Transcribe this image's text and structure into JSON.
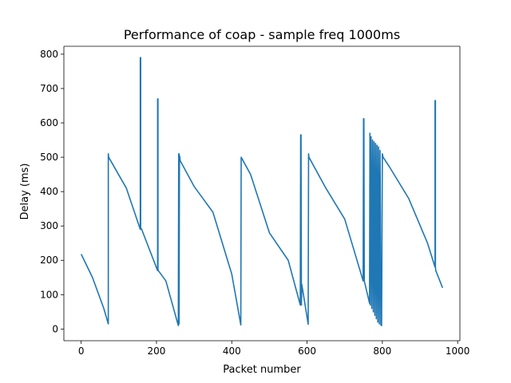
{
  "chart_data": {
    "type": "line",
    "title": "Performance of coap - sample freq 1000ms",
    "xlabel": "Packet number",
    "ylabel": "Delay (ms)",
    "xlim": [
      -46,
      1006
    ],
    "ylim": [
      -34,
      823
    ],
    "xticks": [
      0,
      200,
      400,
      600,
      800,
      1000
    ],
    "yticks": [
      0,
      100,
      200,
      300,
      400,
      500,
      600,
      700,
      800
    ],
    "grid": false,
    "legend": "none",
    "series_color": "#1f77b4",
    "series": [
      {
        "x": [
          0,
          30,
          60,
          72,
          72,
          73,
          120,
          157,
          157,
          158,
          158,
          160,
          203,
          203,
          204,
          204,
          205,
          225,
          258,
          259,
          260,
          260,
          261,
          262,
          263,
          300,
          350,
          400,
          424,
          425,
          425,
          450,
          500,
          550,
          582,
          583,
          584,
          585,
          585,
          586,
          603,
          604,
          605,
          650,
          700,
          749,
          750,
          751,
          752,
          766,
          767,
          768,
          770,
          772,
          774,
          776,
          778,
          780,
          782,
          784,
          786,
          788,
          790,
          792,
          794,
          796,
          798,
          800,
          802,
          820,
          870,
          920,
          940,
          940,
          941,
          941,
          942,
          960
        ],
        "y": [
          218,
          150,
          60,
          15,
          510,
          500,
          410,
          290,
          790,
          790,
          292,
          292,
          170,
          670,
          670,
          173,
          170,
          140,
          10,
          510,
          510,
          15,
          505,
          500,
          490,
          415,
          340,
          160,
          12,
          500,
          500,
          450,
          280,
          200,
          70,
          565,
          565,
          70,
          75,
          130,
          14,
          510,
          500,
          410,
          320,
          140,
          612,
          612,
          140,
          75,
          570,
          70,
          560,
          60,
          550,
          50,
          545,
          40,
          540,
          30,
          535,
          20,
          530,
          15,
          520,
          12,
          10,
          510,
          500,
          470,
          380,
          250,
          180,
          665,
          665,
          180,
          170,
          120
        ]
      }
    ]
  }
}
